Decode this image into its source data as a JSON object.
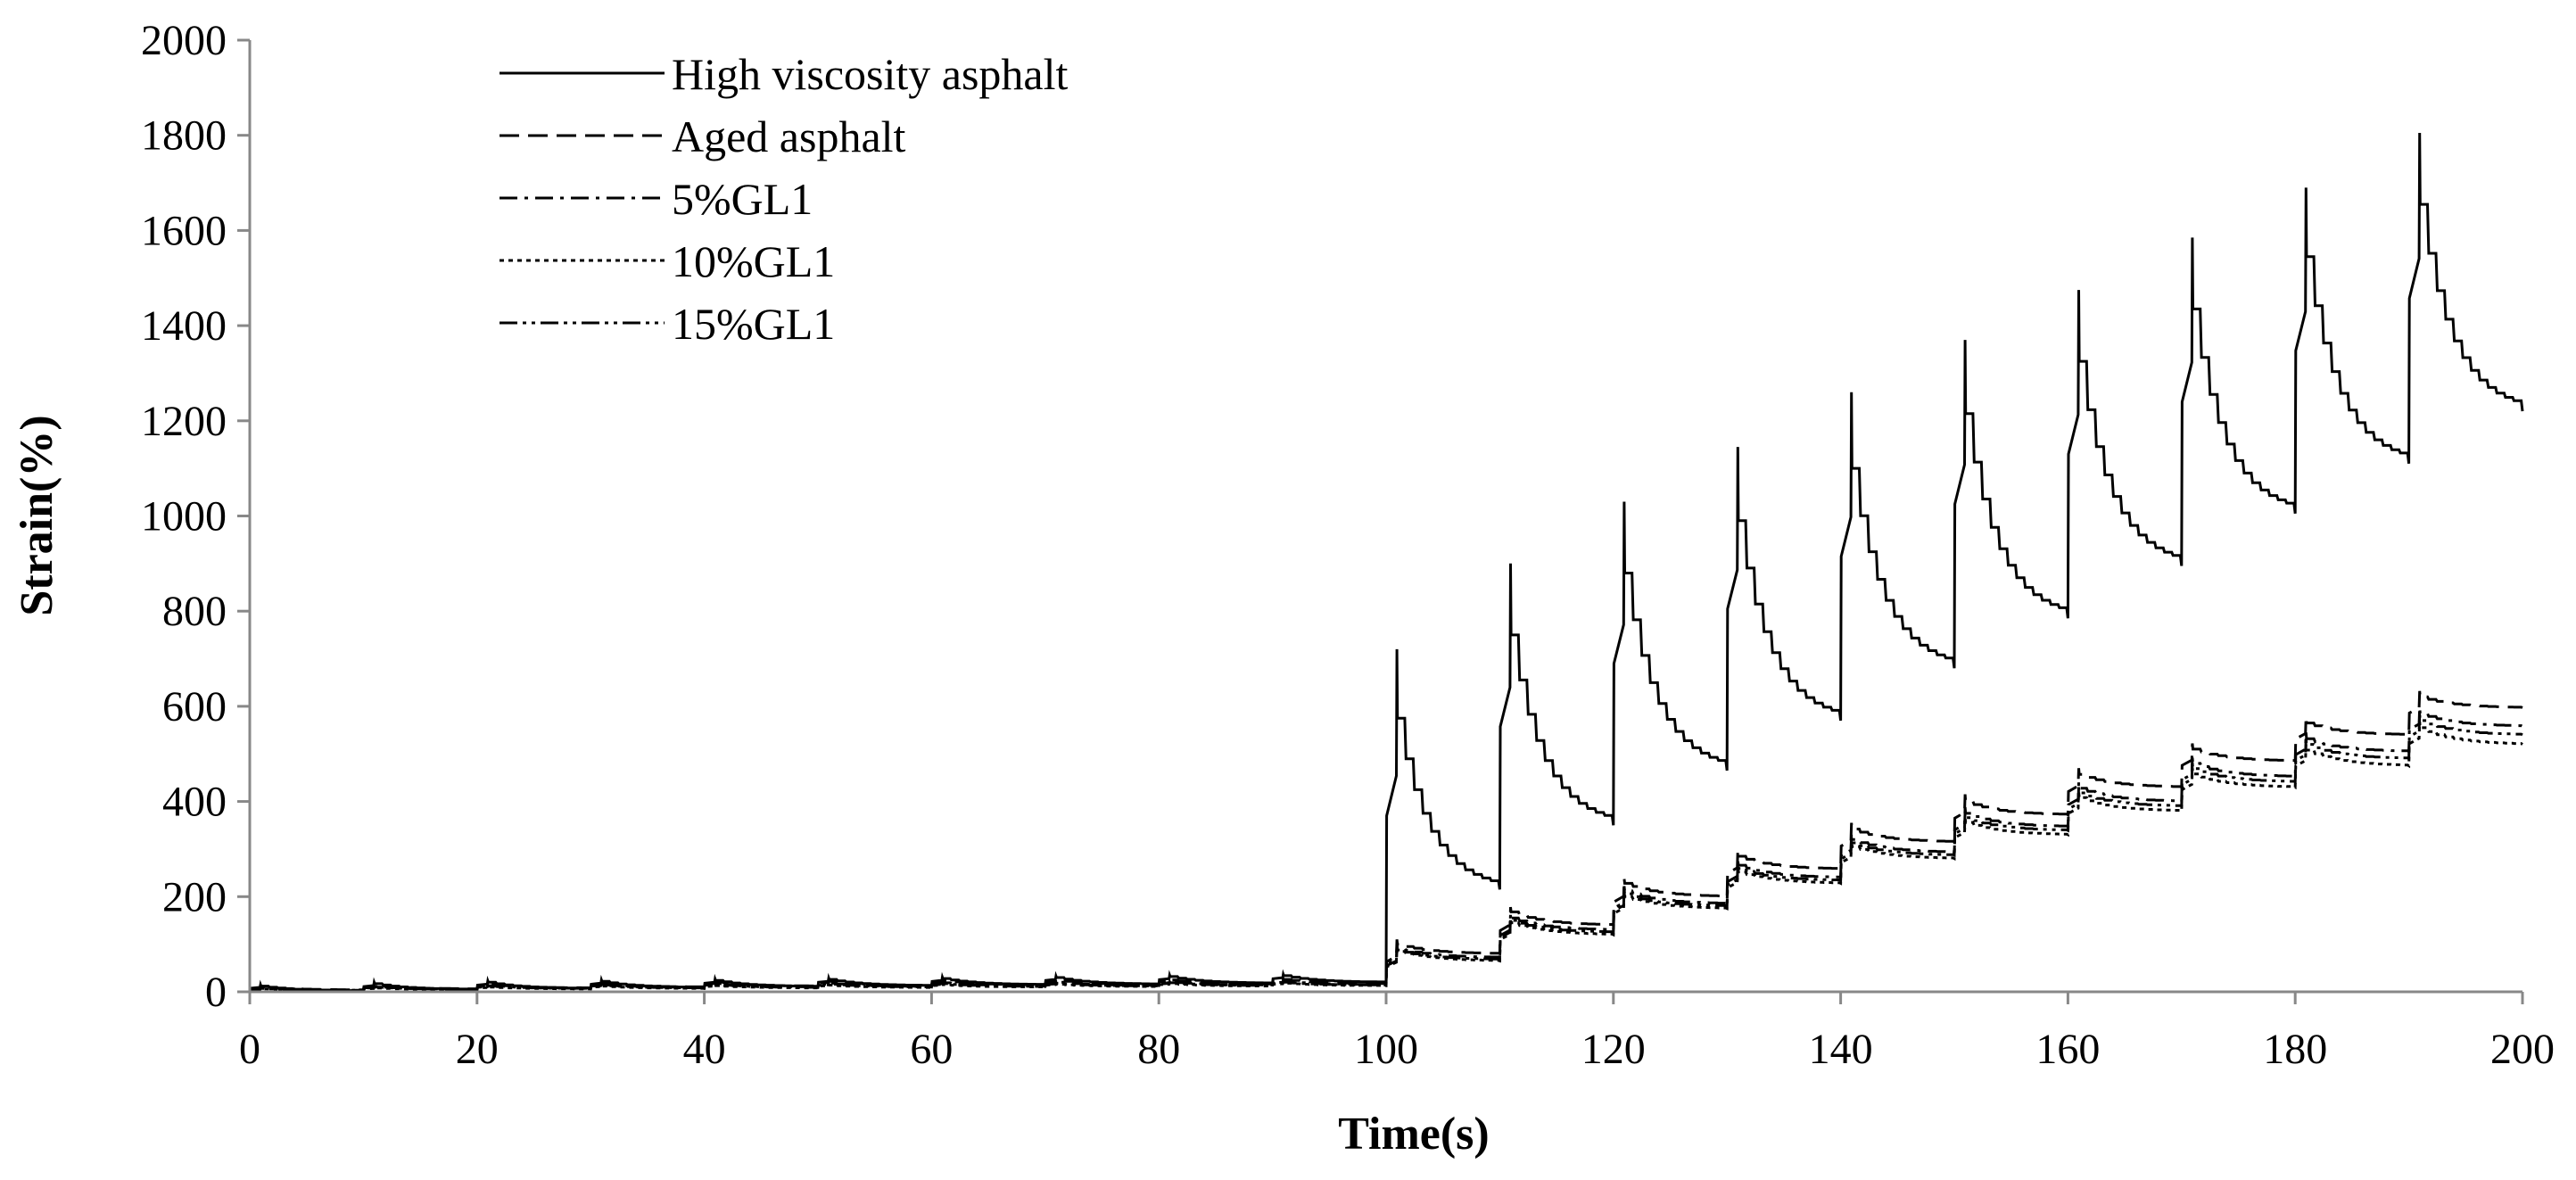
{
  "chart_data": {
    "type": "line",
    "title": "",
    "xlabel": "Time(s)",
    "ylabel": "Strain(%)",
    "xlim": [
      0,
      200
    ],
    "ylim": [
      0,
      2000
    ],
    "x_ticks": [
      "0",
      "20",
      "40",
      "60",
      "80",
      "100",
      "120",
      "140",
      "160",
      "180",
      "200"
    ],
    "y_ticks": [
      "0",
      "200",
      "400",
      "600",
      "800",
      "1000",
      "1200",
      "1400",
      "1600",
      "1800",
      "2000"
    ],
    "grid": false,
    "legend_position": "top-left",
    "cycle_period_s": 10,
    "series": [
      {
        "name": "High viscosity asphalt",
        "style": "solid",
        "cycles": [
          {
            "start": 0,
            "base": 0,
            "peak": 15,
            "drop": 12,
            "end": 2
          },
          {
            "start": 10,
            "base": 2,
            "peak": 20,
            "drop": 17,
            "end": 5
          },
          {
            "start": 20,
            "base": 5,
            "peak": 23,
            "drop": 20,
            "end": 7
          },
          {
            "start": 30,
            "base": 7,
            "peak": 25,
            "drop": 22,
            "end": 9
          },
          {
            "start": 40,
            "base": 9,
            "peak": 27,
            "drop": 24,
            "end": 11
          },
          {
            "start": 50,
            "base": 11,
            "peak": 29,
            "drop": 26,
            "end": 13
          },
          {
            "start": 60,
            "base": 13,
            "peak": 31,
            "drop": 28,
            "end": 15
          },
          {
            "start": 70,
            "base": 15,
            "peak": 33,
            "drop": 30,
            "end": 16
          },
          {
            "start": 80,
            "base": 16,
            "peak": 35,
            "drop": 32,
            "end": 18
          },
          {
            "start": 90,
            "base": 18,
            "peak": 37,
            "drop": 34,
            "end": 20
          },
          {
            "start": 100,
            "base": 20,
            "peak": 720,
            "drop": 575,
            "end": 215
          },
          {
            "start": 110,
            "base": 215,
            "peak": 900,
            "drop": 750,
            "end": 350
          },
          {
            "start": 120,
            "base": 350,
            "peak": 1030,
            "drop": 880,
            "end": 465
          },
          {
            "start": 130,
            "base": 465,
            "peak": 1145,
            "drop": 990,
            "end": 570
          },
          {
            "start": 140,
            "base": 570,
            "peak": 1260,
            "drop": 1100,
            "end": 680
          },
          {
            "start": 150,
            "base": 680,
            "peak": 1370,
            "drop": 1215,
            "end": 785
          },
          {
            "start": 160,
            "base": 785,
            "peak": 1475,
            "drop": 1325,
            "end": 895
          },
          {
            "start": 170,
            "base": 895,
            "peak": 1585,
            "drop": 1435,
            "end": 1005
          },
          {
            "start": 180,
            "base": 1005,
            "peak": 1690,
            "drop": 1545,
            "end": 1110
          },
          {
            "start": 190,
            "base": 1110,
            "peak": 1805,
            "drop": 1655,
            "end": 1220
          }
        ]
      },
      {
        "name": "Aged asphalt",
        "style": "dashed",
        "cycles": [
          {
            "start": 0,
            "base": 0,
            "peak": 12,
            "drop": 10,
            "end": 4
          },
          {
            "start": 10,
            "base": 4,
            "peak": 16,
            "drop": 14,
            "end": 6
          },
          {
            "start": 20,
            "base": 6,
            "peak": 18,
            "drop": 16,
            "end": 8
          },
          {
            "start": 30,
            "base": 8,
            "peak": 20,
            "drop": 18,
            "end": 10
          },
          {
            "start": 40,
            "base": 10,
            "peak": 22,
            "drop": 20,
            "end": 12
          },
          {
            "start": 50,
            "base": 12,
            "peak": 24,
            "drop": 22,
            "end": 13
          },
          {
            "start": 60,
            "base": 13,
            "peak": 25,
            "drop": 23,
            "end": 14
          },
          {
            "start": 70,
            "base": 14,
            "peak": 26,
            "drop": 24,
            "end": 15
          },
          {
            "start": 80,
            "base": 15,
            "peak": 27,
            "drop": 25,
            "end": 16
          },
          {
            "start": 90,
            "base": 16,
            "peak": 28,
            "drop": 26,
            "end": 17
          },
          {
            "start": 100,
            "base": 17,
            "peak": 110,
            "drop": 100,
            "end": 80
          },
          {
            "start": 110,
            "base": 80,
            "peak": 178,
            "drop": 168,
            "end": 140
          },
          {
            "start": 120,
            "base": 140,
            "peak": 238,
            "drop": 228,
            "end": 200
          },
          {
            "start": 130,
            "base": 200,
            "peak": 298,
            "drop": 285,
            "end": 258
          },
          {
            "start": 140,
            "base": 258,
            "peak": 355,
            "drop": 342,
            "end": 315
          },
          {
            "start": 150,
            "base": 315,
            "peak": 415,
            "drop": 400,
            "end": 372
          },
          {
            "start": 160,
            "base": 372,
            "peak": 470,
            "drop": 457,
            "end": 430
          },
          {
            "start": 170,
            "base": 430,
            "peak": 522,
            "drop": 510,
            "end": 485
          },
          {
            "start": 180,
            "base": 485,
            "peak": 578,
            "drop": 565,
            "end": 540
          },
          {
            "start": 190,
            "base": 540,
            "peak": 632,
            "drop": 620,
            "end": 597
          }
        ]
      },
      {
        "name": "5%GL1",
        "style": "dashdot",
        "cycles": [
          {
            "start": 0,
            "base": 0,
            "peak": 10,
            "drop": 8,
            "end": 3
          },
          {
            "start": 10,
            "base": 3,
            "peak": 13,
            "drop": 11,
            "end": 5
          },
          {
            "start": 20,
            "base": 5,
            "peak": 15,
            "drop": 13,
            "end": 7
          },
          {
            "start": 30,
            "base": 7,
            "peak": 17,
            "drop": 15,
            "end": 9
          },
          {
            "start": 40,
            "base": 9,
            "peak": 19,
            "drop": 17,
            "end": 10
          },
          {
            "start": 50,
            "base": 10,
            "peak": 20,
            "drop": 18,
            "end": 11
          },
          {
            "start": 60,
            "base": 11,
            "peak": 21,
            "drop": 19,
            "end": 12
          },
          {
            "start": 70,
            "base": 12,
            "peak": 22,
            "drop": 20,
            "end": 13
          },
          {
            "start": 80,
            "base": 13,
            "peak": 23,
            "drop": 21,
            "end": 14
          },
          {
            "start": 90,
            "base": 14,
            "peak": 24,
            "drop": 22,
            "end": 15
          },
          {
            "start": 100,
            "base": 15,
            "peak": 100,
            "drop": 92,
            "end": 72
          },
          {
            "start": 110,
            "base": 72,
            "peak": 165,
            "drop": 155,
            "end": 130
          },
          {
            "start": 120,
            "base": 130,
            "peak": 222,
            "drop": 212,
            "end": 185
          },
          {
            "start": 130,
            "base": 185,
            "peak": 278,
            "drop": 266,
            "end": 240
          },
          {
            "start": 140,
            "base": 240,
            "peak": 333,
            "drop": 320,
            "end": 293
          },
          {
            "start": 150,
            "base": 293,
            "peak": 388,
            "drop": 375,
            "end": 347
          },
          {
            "start": 160,
            "base": 347,
            "peak": 440,
            "drop": 428,
            "end": 400
          },
          {
            "start": 170,
            "base": 400,
            "peak": 492,
            "drop": 480,
            "end": 452
          },
          {
            "start": 180,
            "base": 452,
            "peak": 545,
            "drop": 532,
            "end": 505
          },
          {
            "start": 190,
            "base": 505,
            "peak": 598,
            "drop": 585,
            "end": 558
          }
        ]
      },
      {
        "name": "10%GL1",
        "style": "dotted",
        "cycles": [
          {
            "start": 0,
            "base": 0,
            "peak": 8,
            "drop": 6,
            "end": 2
          },
          {
            "start": 10,
            "base": 2,
            "peak": 10,
            "drop": 8,
            "end": 4
          },
          {
            "start": 20,
            "base": 4,
            "peak": 12,
            "drop": 10,
            "end": 6
          },
          {
            "start": 30,
            "base": 6,
            "peak": 14,
            "drop": 12,
            "end": 7
          },
          {
            "start": 40,
            "base": 7,
            "peak": 15,
            "drop": 13,
            "end": 8
          },
          {
            "start": 50,
            "base": 8,
            "peak": 16,
            "drop": 14,
            "end": 9
          },
          {
            "start": 60,
            "base": 9,
            "peak": 17,
            "drop": 15,
            "end": 10
          },
          {
            "start": 70,
            "base": 10,
            "peak": 18,
            "drop": 16,
            "end": 11
          },
          {
            "start": 80,
            "base": 11,
            "peak": 19,
            "drop": 17,
            "end": 12
          },
          {
            "start": 90,
            "base": 12,
            "peak": 20,
            "drop": 18,
            "end": 13
          },
          {
            "start": 100,
            "base": 13,
            "peak": 92,
            "drop": 85,
            "end": 65
          },
          {
            "start": 110,
            "base": 65,
            "peak": 155,
            "drop": 145,
            "end": 120
          },
          {
            "start": 120,
            "base": 120,
            "peak": 210,
            "drop": 200,
            "end": 175
          },
          {
            "start": 130,
            "base": 175,
            "peak": 263,
            "drop": 252,
            "end": 228
          },
          {
            "start": 140,
            "base": 228,
            "peak": 316,
            "drop": 305,
            "end": 280
          },
          {
            "start": 150,
            "base": 280,
            "peak": 368,
            "drop": 356,
            "end": 330
          },
          {
            "start": 160,
            "base": 330,
            "peak": 420,
            "drop": 408,
            "end": 380
          },
          {
            "start": 170,
            "base": 380,
            "peak": 470,
            "drop": 458,
            "end": 430
          },
          {
            "start": 180,
            "base": 430,
            "peak": 520,
            "drop": 508,
            "end": 475
          },
          {
            "start": 190,
            "base": 475,
            "peak": 568,
            "drop": 555,
            "end": 520
          }
        ]
      },
      {
        "name": "15%GL1",
        "style": "dashdotdot",
        "cycles": [
          {
            "start": 0,
            "base": 0,
            "peak": 9,
            "drop": 7,
            "end": 3
          },
          {
            "start": 10,
            "base": 3,
            "peak": 12,
            "drop": 10,
            "end": 5
          },
          {
            "start": 20,
            "base": 5,
            "peak": 14,
            "drop": 12,
            "end": 7
          },
          {
            "start": 30,
            "base": 7,
            "peak": 16,
            "drop": 14,
            "end": 8
          },
          {
            "start": 40,
            "base": 8,
            "peak": 17,
            "drop": 15,
            "end": 9
          },
          {
            "start": 50,
            "base": 9,
            "peak": 18,
            "drop": 16,
            "end": 10
          },
          {
            "start": 60,
            "base": 10,
            "peak": 19,
            "drop": 17,
            "end": 11
          },
          {
            "start": 70,
            "base": 11,
            "peak": 20,
            "drop": 18,
            "end": 12
          },
          {
            "start": 80,
            "base": 12,
            "peak": 21,
            "drop": 19,
            "end": 13
          },
          {
            "start": 90,
            "base": 13,
            "peak": 22,
            "drop": 20,
            "end": 14
          },
          {
            "start": 100,
            "base": 14,
            "peak": 96,
            "drop": 88,
            "end": 68
          },
          {
            "start": 110,
            "base": 68,
            "peak": 160,
            "drop": 150,
            "end": 125
          },
          {
            "start": 120,
            "base": 125,
            "peak": 216,
            "drop": 206,
            "end": 180
          },
          {
            "start": 130,
            "base": 180,
            "peak": 270,
            "drop": 259,
            "end": 234
          },
          {
            "start": 140,
            "base": 234,
            "peak": 325,
            "drop": 313,
            "end": 287
          },
          {
            "start": 150,
            "base": 287,
            "peak": 378,
            "drop": 366,
            "end": 339
          },
          {
            "start": 160,
            "base": 339,
            "peak": 430,
            "drop": 418,
            "end": 390
          },
          {
            "start": 170,
            "base": 390,
            "peak": 481,
            "drop": 469,
            "end": 441
          },
          {
            "start": 180,
            "base": 441,
            "peak": 532,
            "drop": 520,
            "end": 490
          },
          {
            "start": 190,
            "base": 490,
            "peak": 583,
            "drop": 570,
            "end": 540
          }
        ]
      }
    ]
  }
}
